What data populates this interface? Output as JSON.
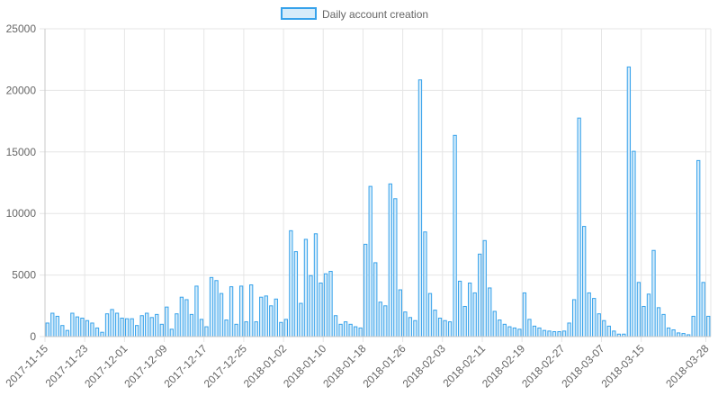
{
  "chart_data": {
    "type": "bar",
    "legend": {
      "position": "top-center",
      "entries": [
        {
          "name": "Daily account creation"
        }
      ]
    },
    "series": [
      {
        "name": "Daily account creation",
        "fill_color": "#d6ecfa",
        "border_color": "#36a2eb",
        "start_date": "2017-11-15",
        "values": [
          1100,
          1900,
          1650,
          900,
          500,
          1900,
          1600,
          1500,
          1300,
          1100,
          700,
          350,
          1850,
          2200,
          1900,
          1500,
          1450,
          1450,
          900,
          1700,
          1900,
          1550,
          1800,
          1000,
          2400,
          600,
          1850,
          3200,
          3000,
          1800,
          4100,
          1400,
          800,
          4800,
          4550,
          3500,
          1350,
          4050,
          1000,
          4100,
          1200,
          4200,
          1200,
          3200,
          3300,
          2500,
          3050,
          1150,
          1400,
          8600,
          6900,
          2700,
          7900,
          4950,
          8350,
          4350,
          5100,
          5300,
          1700,
          1000,
          1200,
          1000,
          800,
          700,
          7500,
          12200,
          6000,
          2800,
          2500,
          12400,
          11200,
          3800,
          2000,
          1550,
          1300,
          20850,
          8500,
          3500,
          2150,
          1500,
          1300,
          1200,
          16350,
          4500,
          2450,
          4350,
          3550,
          6700,
          7800,
          3950,
          2050,
          1350,
          1000,
          800,
          700,
          600,
          3550,
          1400,
          850,
          700,
          500,
          450,
          400,
          400,
          450,
          1100,
          3000,
          17750,
          8950,
          3550,
          3100,
          1850,
          1300,
          850,
          450,
          200,
          200,
          21900,
          15050,
          4400,
          2450,
          3450,
          7000,
          2350,
          1800,
          700,
          550,
          300,
          250,
          150,
          1650,
          14300,
          4400,
          1650
        ]
      }
    ],
    "x_axis": {
      "type": "date",
      "tick_labels": [
        "2017-11-15",
        "2017-11-23",
        "2017-12-01",
        "2017-12-09",
        "2017-12-17",
        "2017-12-25",
        "2018-01-02",
        "2018-01-10",
        "2018-01-18",
        "2018-01-26",
        "2018-02-03",
        "2018-02-11",
        "2018-02-19",
        "2018-02-27",
        "2018-03-07",
        "2018-03-15",
        "2018-03-28"
      ],
      "gridlines": true
    },
    "y_axis": {
      "ylim": [
        0,
        25000
      ],
      "tick_labels": [
        "0",
        "5000",
        "10000",
        "15000",
        "20000",
        "25000"
      ],
      "gridlines": true
    }
  }
}
